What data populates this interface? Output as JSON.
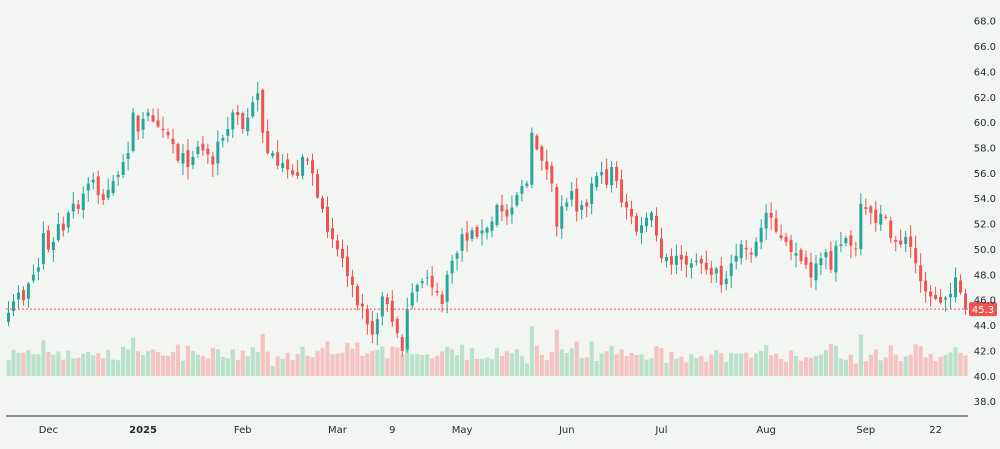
{
  "chart_data": {
    "type": "candlestick",
    "y_axis": {
      "ticks": [
        38,
        40,
        42,
        44,
        46,
        48,
        50,
        52,
        54,
        56,
        58,
        60,
        62,
        64,
        66,
        68
      ],
      "range": [
        37.5,
        68.8
      ],
      "side": "right"
    },
    "x_axis": {
      "labels": [
        {
          "text": "Dec",
          "index": 8
        },
        {
          "text": "2025",
          "index": 27,
          "bold": true
        },
        {
          "text": "Feb",
          "index": 47
        },
        {
          "text": "Mar",
          "index": 66
        },
        {
          "text": "9",
          "index": 77
        },
        {
          "text": "May",
          "index": 91
        },
        {
          "text": "Jun",
          "index": 112
        },
        {
          "text": "Jul",
          "index": 131
        },
        {
          "text": "Aug",
          "index": 152
        },
        {
          "text": "Sep",
          "index": 172
        },
        {
          "text": "22",
          "index": 186
        }
      ]
    },
    "last_price": {
      "value": 45.3,
      "label": "45.3"
    },
    "colors": {
      "up": "#26a69a",
      "down": "#ef5350",
      "up_volume": "#b9e1cc",
      "down_volume": "#f4c3c2",
      "price_line": "#ef5350",
      "background": "#f3f5f2"
    },
    "closes": [
      45.0,
      45.9,
      46.6,
      46.0,
      47.3,
      48.0,
      48.6,
      51.3,
      50.0,
      50.6,
      52.0,
      51.5,
      52.9,
      53.6,
      53.2,
      54.4,
      55.2,
      55.5,
      54.3,
      53.9,
      54.7,
      55.4,
      55.9,
      56.9,
      57.6,
      60.8,
      59.3,
      60.3,
      60.8,
      60.1,
      59.7,
      59.4,
      59.0,
      58.3,
      57.0,
      57.6,
      56.5,
      57.3,
      58.1,
      57.8,
      57.5,
      56.7,
      58.5,
      58.8,
      59.5,
      60.8,
      60.6,
      59.5,
      60.4,
      61.6,
      62.3,
      59.2,
      57.6,
      57.6,
      56.6,
      56.8,
      56.3,
      55.9,
      55.8,
      57.3,
      57.0,
      56.0,
      54.1,
      53.2,
      51.4,
      50.8,
      50.0,
      49.3,
      47.9,
      47.2,
      45.6,
      45.5,
      44.1,
      43.3,
      44.5,
      46.3,
      45.7,
      44.3,
      43.4,
      42.0,
      45.3,
      46.6,
      47.2,
      47.5,
      47.8,
      47.0,
      46.6,
      45.7,
      48.0,
      49.1,
      49.7,
      51.2,
      50.7,
      51.5,
      51.0,
      51.5,
      51.7,
      52.2,
      53.5,
      53.0,
      52.6,
      53.3,
      54.3,
      55.0,
      55.2,
      59.2,
      57.9,
      57.0,
      56.3,
      55.2,
      51.8,
      53.4,
      53.7,
      54.6,
      53.0,
      53.5,
      53.4,
      55.2,
      55.8,
      56.1,
      55.1,
      56.5,
      55.4,
      53.7,
      53.3,
      52.6,
      51.4,
      51.9,
      52.5,
      52.9,
      51.1,
      49.3,
      49.4,
      48.8,
      49.5,
      49.2,
      48.8,
      48.9,
      49.1,
      48.9,
      48.4,
      48.0,
      48.5,
      47.2,
      47.7,
      48.9,
      49.5,
      50.4,
      50.0,
      49.6,
      50.6,
      51.7,
      52.9,
      52.5,
      51.4,
      50.9,
      50.6,
      49.8,
      49.7,
      49.1,
      48.8,
      47.8,
      48.9,
      49.3,
      49.8,
      48.4,
      50.3,
      50.4,
      50.9,
      50.3,
      50.0,
      53.6,
      53.2,
      52.9,
      52.1,
      52.8,
      52.5,
      50.9,
      50.6,
      50.4,
      51.0,
      50.2,
      48.9,
      47.5,
      46.7,
      46.3,
      46.1,
      45.8,
      46.2,
      46.5,
      47.8,
      46.6,
      45.3
    ]
  }
}
